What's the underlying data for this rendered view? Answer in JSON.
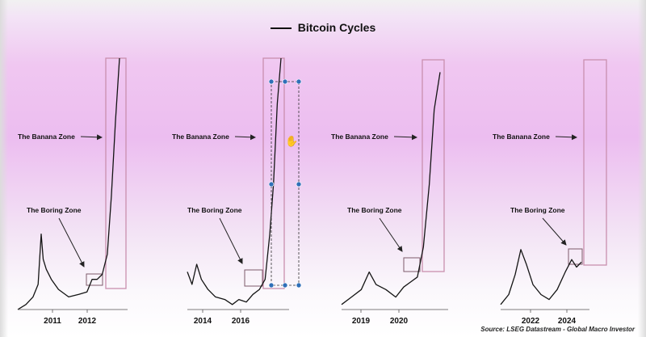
{
  "chart_data": {
    "title": "Bitcoin Cycles",
    "legend": "Bitcoin Cycles",
    "source": "Source: LSEG Datastream - Global Macro Investor",
    "type": "line",
    "colors": {
      "line": "#141414",
      "zone_box": "#c98fae",
      "annotation": "#222222",
      "selection": "#2f6fb8"
    },
    "panels": [
      {
        "x_ticks": [
          "2011",
          "2012"
        ],
        "banana_label": "The Banana Zone",
        "boring_label": "The Boring Zone",
        "series": [
          {
            "x": 0.0,
            "y": 0.0
          },
          {
            "x": 0.08,
            "y": 0.02
          },
          {
            "x": 0.15,
            "y": 0.05
          },
          {
            "x": 0.2,
            "y": 0.1
          },
          {
            "x": 0.23,
            "y": 0.3
          },
          {
            "x": 0.25,
            "y": 0.2
          },
          {
            "x": 0.28,
            "y": 0.16
          },
          {
            "x": 0.33,
            "y": 0.12
          },
          {
            "x": 0.4,
            "y": 0.08
          },
          {
            "x": 0.5,
            "y": 0.05
          },
          {
            "x": 0.6,
            "y": 0.06
          },
          {
            "x": 0.68,
            "y": 0.07
          },
          {
            "x": 0.73,
            "y": 0.12
          },
          {
            "x": 0.78,
            "y": 0.12
          },
          {
            "x": 0.83,
            "y": 0.14
          },
          {
            "x": 0.88,
            "y": 0.22
          },
          {
            "x": 0.92,
            "y": 0.45
          },
          {
            "x": 0.96,
            "y": 0.75
          },
          {
            "x": 1.0,
            "y": 1.0
          }
        ]
      },
      {
        "x_ticks": [
          "2014",
          "2016"
        ],
        "banana_label": "The Banana Zone",
        "boring_label": "The Boring Zone",
        "series": [
          {
            "x": 0.0,
            "y": 0.15
          },
          {
            "x": 0.05,
            "y": 0.1
          },
          {
            "x": 0.1,
            "y": 0.18
          },
          {
            "x": 0.15,
            "y": 0.12
          },
          {
            "x": 0.22,
            "y": 0.08
          },
          {
            "x": 0.3,
            "y": 0.05
          },
          {
            "x": 0.4,
            "y": 0.04
          },
          {
            "x": 0.48,
            "y": 0.02
          },
          {
            "x": 0.55,
            "y": 0.04
          },
          {
            "x": 0.63,
            "y": 0.03
          },
          {
            "x": 0.7,
            "y": 0.06
          },
          {
            "x": 0.77,
            "y": 0.08
          },
          {
            "x": 0.83,
            "y": 0.12
          },
          {
            "x": 0.88,
            "y": 0.3
          },
          {
            "x": 0.92,
            "y": 0.5
          },
          {
            "x": 0.96,
            "y": 0.82
          },
          {
            "x": 1.0,
            "y": 1.0
          }
        ]
      },
      {
        "x_ticks": [
          "2019",
          "2020"
        ],
        "banana_label": "The Banana Zone",
        "boring_label": "The Boring Zone",
        "series": [
          {
            "x": 0.0,
            "y": 0.02
          },
          {
            "x": 0.1,
            "y": 0.05
          },
          {
            "x": 0.2,
            "y": 0.08
          },
          {
            "x": 0.28,
            "y": 0.15
          },
          {
            "x": 0.35,
            "y": 0.1
          },
          {
            "x": 0.45,
            "y": 0.08
          },
          {
            "x": 0.55,
            "y": 0.05
          },
          {
            "x": 0.63,
            "y": 0.09
          },
          {
            "x": 0.7,
            "y": 0.11
          },
          {
            "x": 0.77,
            "y": 0.13
          },
          {
            "x": 0.83,
            "y": 0.25
          },
          {
            "x": 0.89,
            "y": 0.5
          },
          {
            "x": 0.94,
            "y": 0.8
          },
          {
            "x": 1.0,
            "y": 0.95
          }
        ]
      },
      {
        "x_ticks": [
          "2022",
          "2024"
        ],
        "banana_label": "The Banana Zone",
        "boring_label": "The Boring Zone",
        "series": [
          {
            "x": 0.0,
            "y": 0.02
          },
          {
            "x": 0.1,
            "y": 0.06
          },
          {
            "x": 0.18,
            "y": 0.14
          },
          {
            "x": 0.25,
            "y": 0.24
          },
          {
            "x": 0.32,
            "y": 0.18
          },
          {
            "x": 0.4,
            "y": 0.1
          },
          {
            "x": 0.5,
            "y": 0.06
          },
          {
            "x": 0.6,
            "y": 0.04
          },
          {
            "x": 0.7,
            "y": 0.08
          },
          {
            "x": 0.8,
            "y": 0.15
          },
          {
            "x": 0.88,
            "y": 0.2
          },
          {
            "x": 0.94,
            "y": 0.17
          },
          {
            "x": 1.0,
            "y": 0.19
          }
        ]
      }
    ]
  }
}
